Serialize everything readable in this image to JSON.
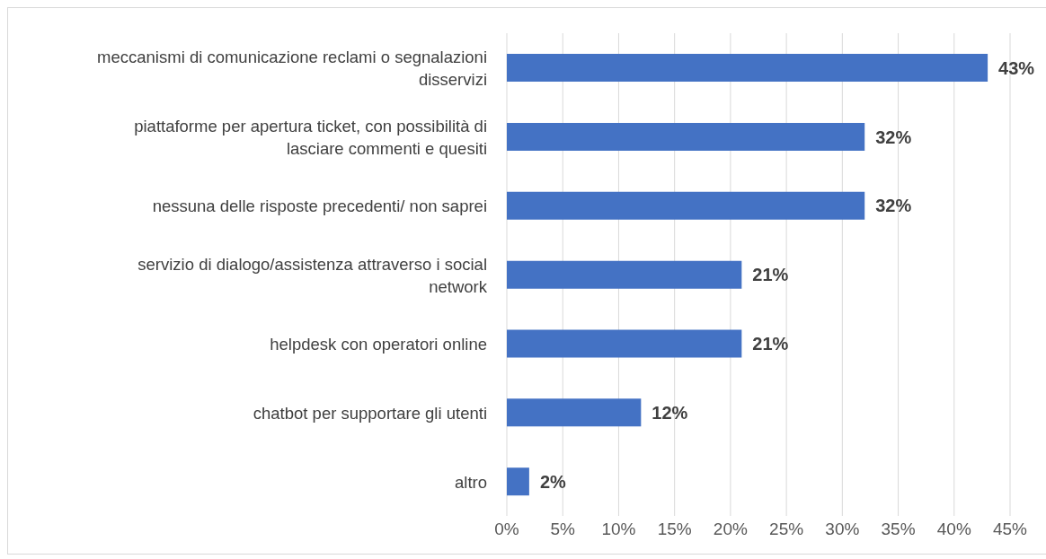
{
  "chart_data": {
    "type": "bar",
    "orientation": "horizontal",
    "categories": [
      "meccanismi di comunicazione reclami o segnalazioni disservizi",
      "piattaforme per apertura ticket, con possibilità di lasciare commenti e quesiti",
      "nessuna delle risposte precedenti/ non saprei",
      "servizio di dialogo/assistenza attraverso i social network",
      "helpdesk con operatori online",
      "chatbot per supportare gli utenti",
      "altro"
    ],
    "values": [
      43,
      32,
      32,
      21,
      21,
      12,
      2
    ],
    "value_labels": [
      "43%",
      "32%",
      "32%",
      "21%",
      "21%",
      "12%",
      "2%"
    ],
    "color": "#4472c4",
    "xlim": [
      0,
      45
    ],
    "xticks": [
      {
        "value": 0,
        "label": "0%"
      },
      {
        "value": 5,
        "label": "5%"
      },
      {
        "value": 10,
        "label": "10%"
      },
      {
        "value": 15,
        "label": "15%"
      },
      {
        "value": 20,
        "label": "20%"
      },
      {
        "value": 25,
        "label": "25%"
      },
      {
        "value": 30,
        "label": "30%"
      },
      {
        "value": 35,
        "label": "35%"
      },
      {
        "value": 40,
        "label": "40%"
      },
      {
        "value": 45,
        "label": "45%"
      }
    ],
    "grid": "x"
  }
}
